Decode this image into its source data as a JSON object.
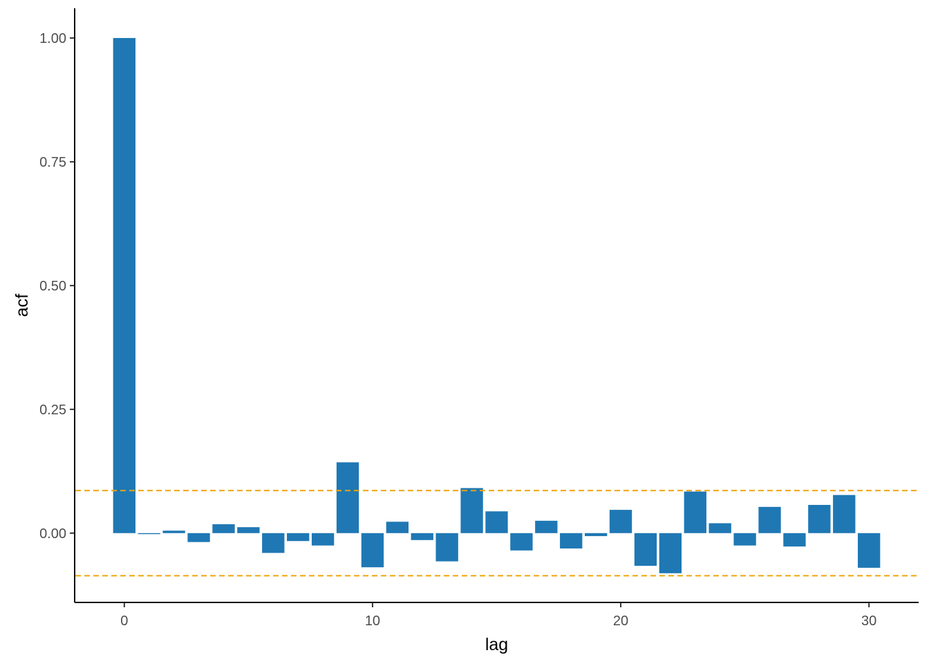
{
  "chart_data": {
    "type": "bar",
    "xlabel": "lag",
    "ylabel": "acf",
    "x": [
      0,
      1,
      2,
      3,
      4,
      5,
      6,
      7,
      8,
      9,
      10,
      11,
      12,
      13,
      14,
      15,
      16,
      17,
      18,
      19,
      20,
      21,
      22,
      23,
      24,
      25,
      26,
      27,
      28,
      29,
      30
    ],
    "values": [
      1.0,
      -0.002,
      0.005,
      -0.018,
      0.018,
      0.012,
      -0.04,
      -0.016,
      -0.025,
      0.143,
      -0.069,
      0.023,
      -0.014,
      -0.057,
      0.091,
      0.044,
      -0.035,
      0.025,
      -0.031,
      -0.006,
      0.047,
      -0.066,
      -0.081,
      0.084,
      0.02,
      -0.025,
      0.053,
      -0.027,
      0.057,
      0.077,
      -0.07
    ],
    "conf_limits": [
      0.086,
      -0.086
    ],
    "xlim": [
      -2,
      32
    ],
    "ylim": [
      -0.14,
      1.06
    ],
    "x_ticks": [
      0,
      10,
      20,
      30
    ],
    "y_ticks": [
      0,
      0.25,
      0.5,
      0.75,
      1.0
    ],
    "x_tick_labels": [
      "0",
      "10",
      "20",
      "30"
    ],
    "y_tick_labels": [
      "0.00",
      "0.25",
      "0.50",
      "0.75",
      "1.00"
    ],
    "bar_color": "#1f78b4",
    "conf_line_color": "#f0a30a",
    "grid": false
  }
}
